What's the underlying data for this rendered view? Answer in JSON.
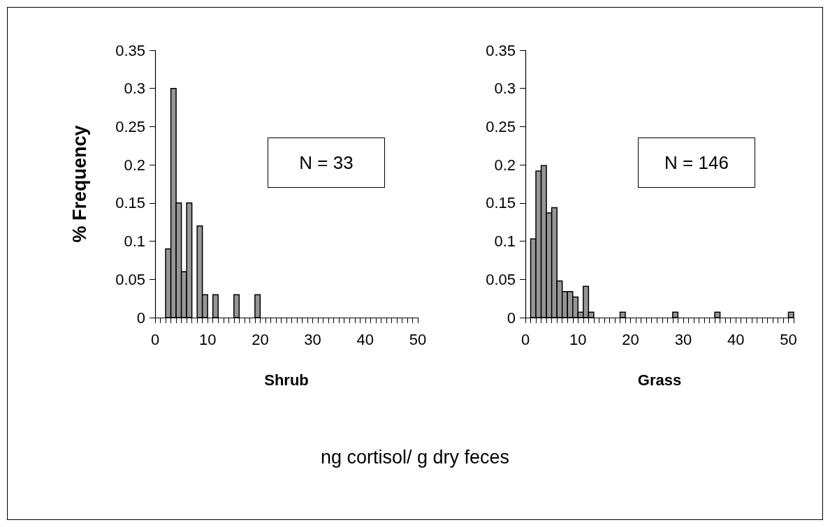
{
  "chart_data": [
    {
      "type": "histogram",
      "ylabel": "% Frequency",
      "xlabel": "Shrub",
      "color": "#969696",
      "bins": [
        2,
        3,
        4,
        5,
        6,
        7,
        8,
        9,
        10,
        11,
        12,
        13,
        14,
        15,
        16,
        17,
        18,
        19,
        20
      ],
      "values": [
        0.09,
        0.3,
        0.15,
        0.06,
        0.15,
        0,
        0.12,
        0.03,
        0,
        0.03,
        0,
        0,
        0,
        0.03,
        0,
        0,
        0,
        0.03
      ],
      "xlim": [
        0,
        50
      ],
      "ylim": [
        0,
        0.35
      ],
      "xticks": [
        0,
        {
          "value": 1,
          "label": null
        },
        {
          "value": 2,
          "label": null
        },
        {
          "value": 3,
          "label": null
        },
        {
          "value": 4,
          "label": null
        },
        {
          "value": 5,
          "label": null
        },
        {
          "value": 6,
          "label": null
        },
        {
          "value": 7,
          "label": null
        },
        {
          "value": 8,
          "label": null
        },
        {
          "value": 9,
          "label": null
        },
        10,
        {
          "value": 11,
          "label": null
        },
        {
          "value": 12,
          "label": null
        },
        {
          "value": 13,
          "label": null
        },
        {
          "value": 14,
          "label": null
        },
        {
          "value": 15,
          "label": null
        },
        {
          "value": 16,
          "label": null
        },
        {
          "value": 17,
          "label": null
        },
        {
          "value": 18,
          "label": null
        },
        {
          "value": 19,
          "label": null
        },
        20,
        {
          "value": 21,
          "label": null
        },
        {
          "value": 22,
          "label": null
        },
        {
          "value": 23,
          "label": null
        },
        {
          "value": 24,
          "label": null
        },
        {
          "value": 25,
          "label": null
        },
        {
          "value": 26,
          "label": null
        },
        {
          "value": 27,
          "label": null
        },
        {
          "value": 28,
          "label": null
        },
        {
          "value": 29,
          "label": null
        },
        30,
        {
          "value": 31,
          "label": null
        },
        {
          "value": 32,
          "label": null
        },
        {
          "value": 33,
          "label": null
        },
        {
          "value": 34,
          "label": null
        },
        {
          "value": 35,
          "label": null
        },
        {
          "value": 36,
          "label": null
        },
        {
          "value": 37,
          "label": null
        },
        {
          "value": 38,
          "label": null
        },
        {
          "value": 39,
          "label": null
        },
        40,
        {
          "value": 41,
          "label": null
        },
        {
          "value": 42,
          "label": null
        },
        {
          "value": 43,
          "label": null
        },
        {
          "value": 44,
          "label": null
        },
        {
          "value": 45,
          "label": null
        },
        {
          "value": 46,
          "label": null
        },
        {
          "value": 47,
          "label": null
        },
        {
          "value": 48,
          "label": null
        },
        {
          "value": 49,
          "label": null
        },
        50
      ],
      "yticks": [
        0,
        0.05,
        0.1,
        0.15,
        0.2,
        0.25,
        0.3,
        0.35
      ],
      "annotations": [
        "N = 33",
        "ng cortisol/ g dry feces"
      ],
      "grid": false
    },
    {
      "type": "histogram",
      "xlabel": "Grass",
      "color": "#969696",
      "bins": [
        1,
        2,
        3,
        4,
        5,
        6,
        7,
        8,
        9,
        10,
        11,
        12,
        13,
        14,
        15,
        16,
        17,
        18,
        19,
        20,
        21,
        22,
        23,
        24,
        25,
        26,
        27,
        28,
        29,
        30,
        31,
        32,
        33,
        34,
        35,
        36,
        37,
        38,
        39,
        40,
        41,
        42,
        43,
        44,
        45,
        46,
        47,
        48,
        49,
        50,
        51
      ],
      "values": [
        0.103,
        0.192,
        0.199,
        0.137,
        0.144,
        0.048,
        0.034,
        0.034,
        0.027,
        0.007,
        0.041,
        0.007,
        0,
        0,
        0,
        0,
        0,
        0.007,
        0,
        0,
        0,
        0,
        0,
        0,
        0,
        0,
        0,
        0.007,
        0,
        0,
        0,
        0,
        0,
        0,
        0,
        0.007,
        0,
        0,
        0,
        0,
        0,
        0,
        0,
        0,
        0,
        0,
        0,
        0,
        0,
        0.007
      ],
      "xlim": [
        0,
        51
      ],
      "ylim": [
        0,
        0.35
      ],
      "xticks": [
        0,
        {
          "value": 1,
          "label": null
        },
        {
          "value": 2,
          "label": null
        },
        {
          "value": 3,
          "label": null
        },
        {
          "value": 4,
          "label": null
        },
        {
          "value": 5,
          "label": null
        },
        {
          "value": 6,
          "label": null
        },
        {
          "value": 7,
          "label": null
        },
        {
          "value": 8,
          "label": null
        },
        {
          "value": 9,
          "label": null
        },
        10,
        {
          "value": 11,
          "label": null
        },
        {
          "value": 12,
          "label": null
        },
        {
          "value": 13,
          "label": null
        },
        {
          "value": 14,
          "label": null
        },
        {
          "value": 15,
          "label": null
        },
        {
          "value": 16,
          "label": null
        },
        {
          "value": 17,
          "label": null
        },
        {
          "value": 18,
          "label": null
        },
        {
          "value": 19,
          "label": null
        },
        20,
        {
          "value": 21,
          "label": null
        },
        {
          "value": 22,
          "label": null
        },
        {
          "value": 23,
          "label": null
        },
        {
          "value": 24,
          "label": null
        },
        {
          "value": 25,
          "label": null
        },
        {
          "value": 26,
          "label": null
        },
        {
          "value": 27,
          "label": null
        },
        {
          "value": 28,
          "label": null
        },
        {
          "value": 29,
          "label": null
        },
        30,
        {
          "value": 31,
          "label": null
        },
        {
          "value": 32,
          "label": null
        },
        {
          "value": 33,
          "label": null
        },
        {
          "value": 34,
          "label": null
        },
        {
          "value": 35,
          "label": null
        },
        {
          "value": 36,
          "label": null
        },
        {
          "value": 37,
          "label": null
        },
        {
          "value": 38,
          "label": null
        },
        {
          "value": 39,
          "label": null
        },
        40,
        {
          "value": 41,
          "label": null
        },
        {
          "value": 42,
          "label": null
        },
        {
          "value": 43,
          "label": null
        },
        {
          "value": 44,
          "label": null
        },
        {
          "value": 45,
          "label": null
        },
        {
          "value": 46,
          "label": null
        },
        {
          "value": 47,
          "label": null
        },
        {
          "value": 48,
          "label": null
        },
        {
          "value": 49,
          "label": null
        },
        50,
        {
          "value": 51,
          "label": null
        }
      ],
      "yticks": [
        0,
        0.05,
        0.1,
        0.15,
        0.2,
        0.25,
        0.3,
        0.35
      ],
      "annotations": [
        "N = 146"
      ],
      "grid": false
    }
  ]
}
